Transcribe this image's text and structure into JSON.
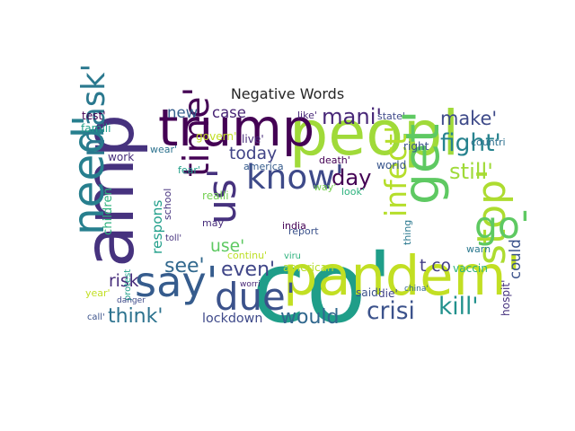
{
  "chart_data": {
    "type": "wordcloud",
    "title": "Negative Words",
    "words": [
      {
        "text": "co'",
        "weight": 100,
        "color": "#1f9e89"
      },
      {
        "text": "amp",
        "weight": 70,
        "color": "#46327e"
      },
      {
        "text": "peopl",
        "weight": 62,
        "color": "#a0da39"
      },
      {
        "text": "pandem'",
        "weight": 55,
        "color": "#c2df23"
      },
      {
        "text": "trump",
        "weight": 52,
        "color": "#440154"
      },
      {
        "text": "get'",
        "weight": 50,
        "color": "#5ec962"
      },
      {
        "text": "need'",
        "weight": 44,
        "color": "#277f8e"
      },
      {
        "text": "say'",
        "weight": 42,
        "color": "#365c8d"
      },
      {
        "text": "stop'",
        "weight": 40,
        "color": "#addc30"
      },
      {
        "text": "us'",
        "weight": 40,
        "color": "#46327e"
      },
      {
        "text": "due'",
        "weight": 38,
        "color": "#3b528b"
      },
      {
        "text": "go'",
        "weight": 37,
        "color": "#5ec962"
      },
      {
        "text": "time'",
        "weight": 36,
        "color": "#440154"
      },
      {
        "text": "know'",
        "weight": 34,
        "color": "#3e4a89"
      },
      {
        "text": "mask'",
        "weight": 32,
        "color": "#2a788e"
      },
      {
        "text": "infect'",
        "weight": 30,
        "color": "#b5de2b"
      },
      {
        "text": "crisi",
        "weight": 24,
        "color": "#3b528b"
      },
      {
        "text": "kill'",
        "weight": 24,
        "color": "#21918c"
      },
      {
        "text": "fight'",
        "weight": 24,
        "color": "#26828e"
      },
      {
        "text": "mani'",
        "weight": 22,
        "color": "#482878"
      },
      {
        "text": "day",
        "weight": 22,
        "color": "#440154"
      },
      {
        "text": "still'",
        "weight": 22,
        "color": "#a0da39"
      },
      {
        "text": "would",
        "weight": 20,
        "color": "#31688e"
      },
      {
        "text": "think'",
        "weight": 20,
        "color": "#2c728e"
      },
      {
        "text": "see'",
        "weight": 20,
        "color": "#31688e"
      },
      {
        "text": "even'",
        "weight": 20,
        "color": "#404688"
      },
      {
        "text": "make'",
        "weight": 19,
        "color": "#3e4a89"
      },
      {
        "text": "today",
        "weight": 17,
        "color": "#414487"
      },
      {
        "text": "use'",
        "weight": 17,
        "color": "#5ec962"
      },
      {
        "text": "risk",
        "weight": 17,
        "color": "#472d7b"
      },
      {
        "text": "t co",
        "weight": 17,
        "color": "#433e85"
      },
      {
        "text": "case",
        "weight": 15,
        "color": "#482475"
      },
      {
        "text": "new",
        "weight": 15,
        "color": "#355f8d"
      },
      {
        "text": "could",
        "weight": 15,
        "color": "#3b528b"
      },
      {
        "text": "respons",
        "weight": 14,
        "color": "#1f9e89"
      },
      {
        "text": "lockdown",
        "weight": 13,
        "color": "#3e4989"
      },
      {
        "text": "children",
        "weight": 12,
        "color": "#2db27d"
      },
      {
        "text": "american",
        "weight": 11,
        "color": "#b5de2b"
      },
      {
        "text": "test'",
        "weight": 11,
        "color": "#440154"
      },
      {
        "text": "world",
        "weight": 11,
        "color": "#39568c"
      },
      {
        "text": "right",
        "weight": 11,
        "color": "#3b528b"
      },
      {
        "text": "govern'",
        "weight": 11,
        "color": "#c2df23"
      },
      {
        "text": "famili",
        "weight": 11,
        "color": "#1f9e89"
      },
      {
        "text": "vaccin",
        "weight": 11,
        "color": "#2db27d"
      },
      {
        "text": "work",
        "weight": 11,
        "color": "#472d7b"
      },
      {
        "text": "live'",
        "weight": 11,
        "color": "#472d7b"
      },
      {
        "text": "realli",
        "weight": 11,
        "color": "#75d054"
      },
      {
        "text": "said'",
        "weight": 11,
        "color": "#3b528b"
      },
      {
        "text": "die'",
        "weight": 11,
        "color": "#414487"
      },
      {
        "text": "hospit'",
        "weight": 11,
        "color": "#46327e"
      },
      {
        "text": "america",
        "weight": 10,
        "color": "#365c8d"
      },
      {
        "text": "death'",
        "weight": 10,
        "color": "#440154"
      },
      {
        "text": "like'",
        "weight": 10,
        "color": "#482878"
      },
      {
        "text": "state'",
        "weight": 10,
        "color": "#3e4989"
      },
      {
        "text": "countri",
        "weight": 10,
        "color": "#2d708e"
      },
      {
        "text": "way'",
        "weight": 10,
        "color": "#7ad151"
      },
      {
        "text": "look'",
        "weight": 10,
        "color": "#2db27d"
      },
      {
        "text": "fear'",
        "weight": 10,
        "color": "#1f9e89"
      },
      {
        "text": "wear'",
        "weight": 10,
        "color": "#2c728e"
      },
      {
        "text": "report",
        "weight": 10,
        "color": "#3b528b"
      },
      {
        "text": "india",
        "weight": 10,
        "color": "#440154"
      },
      {
        "text": "school",
        "weight": 10,
        "color": "#46327e"
      },
      {
        "text": "continu'",
        "weight": 10,
        "color": "#bddf26"
      },
      {
        "text": "year'",
        "weight": 10,
        "color": "#c2df23"
      },
      {
        "text": "may",
        "weight": 10,
        "color": "#472d7b"
      },
      {
        "text": "thing",
        "weight": 10,
        "color": "#2a788e"
      },
      {
        "text": "warn",
        "weight": 10,
        "color": "#2a788e"
      },
      {
        "text": "protest",
        "weight": 9,
        "color": "#1f9e89"
      },
      {
        "text": "toll'",
        "weight": 9,
        "color": "#46327e"
      },
      {
        "text": "viru",
        "weight": 9,
        "color": "#2db27d"
      },
      {
        "text": "call'",
        "weight": 9,
        "color": "#3b528b"
      },
      {
        "text": "worri",
        "weight": 8,
        "color": "#482878"
      },
      {
        "text": "danger",
        "weight": 8,
        "color": "#3e4a89"
      },
      {
        "text": "china'",
        "weight": 8,
        "color": "#31688e"
      }
    ]
  }
}
